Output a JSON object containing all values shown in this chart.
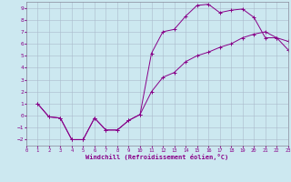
{
  "xlabel": "Windchill (Refroidissement éolien,°C)",
  "bg_color": "#cce8f0",
  "line_color": "#880088",
  "xlim": [
    0,
    23
  ],
  "ylim": [
    -2.5,
    9.5
  ],
  "xticks": [
    0,
    1,
    2,
    3,
    4,
    5,
    6,
    7,
    8,
    9,
    10,
    11,
    12,
    13,
    14,
    15,
    16,
    17,
    18,
    19,
    20,
    21,
    22,
    23
  ],
  "yticks": [
    -2,
    -1,
    0,
    1,
    2,
    3,
    4,
    5,
    6,
    7,
    8,
    9
  ],
  "line1_x": [
    1,
    2,
    3,
    4,
    5,
    6,
    7,
    8,
    9,
    10,
    11,
    12,
    13,
    14,
    15,
    16,
    17,
    18,
    19,
    20,
    21,
    22,
    23
  ],
  "line1_y": [
    1.0,
    -0.1,
    -0.2,
    -2.0,
    -2.0,
    -0.2,
    -1.2,
    -1.2,
    -0.4,
    0.1,
    5.2,
    7.0,
    7.2,
    8.3,
    9.2,
    9.3,
    8.6,
    8.8,
    8.9,
    8.2,
    6.5,
    6.5,
    6.2
  ],
  "line2_x": [
    1,
    2,
    3,
    4,
    5,
    6,
    7,
    8,
    9,
    10,
    11,
    12,
    13,
    14,
    15,
    16,
    17,
    18,
    19,
    20,
    21,
    22,
    23
  ],
  "line2_y": [
    1.0,
    -0.1,
    -0.2,
    -2.0,
    -2.0,
    -0.2,
    -1.2,
    -1.2,
    -0.4,
    0.1,
    2.0,
    3.2,
    3.6,
    4.5,
    5.0,
    5.3,
    5.7,
    6.0,
    6.5,
    6.8,
    7.0,
    6.5,
    5.5
  ]
}
